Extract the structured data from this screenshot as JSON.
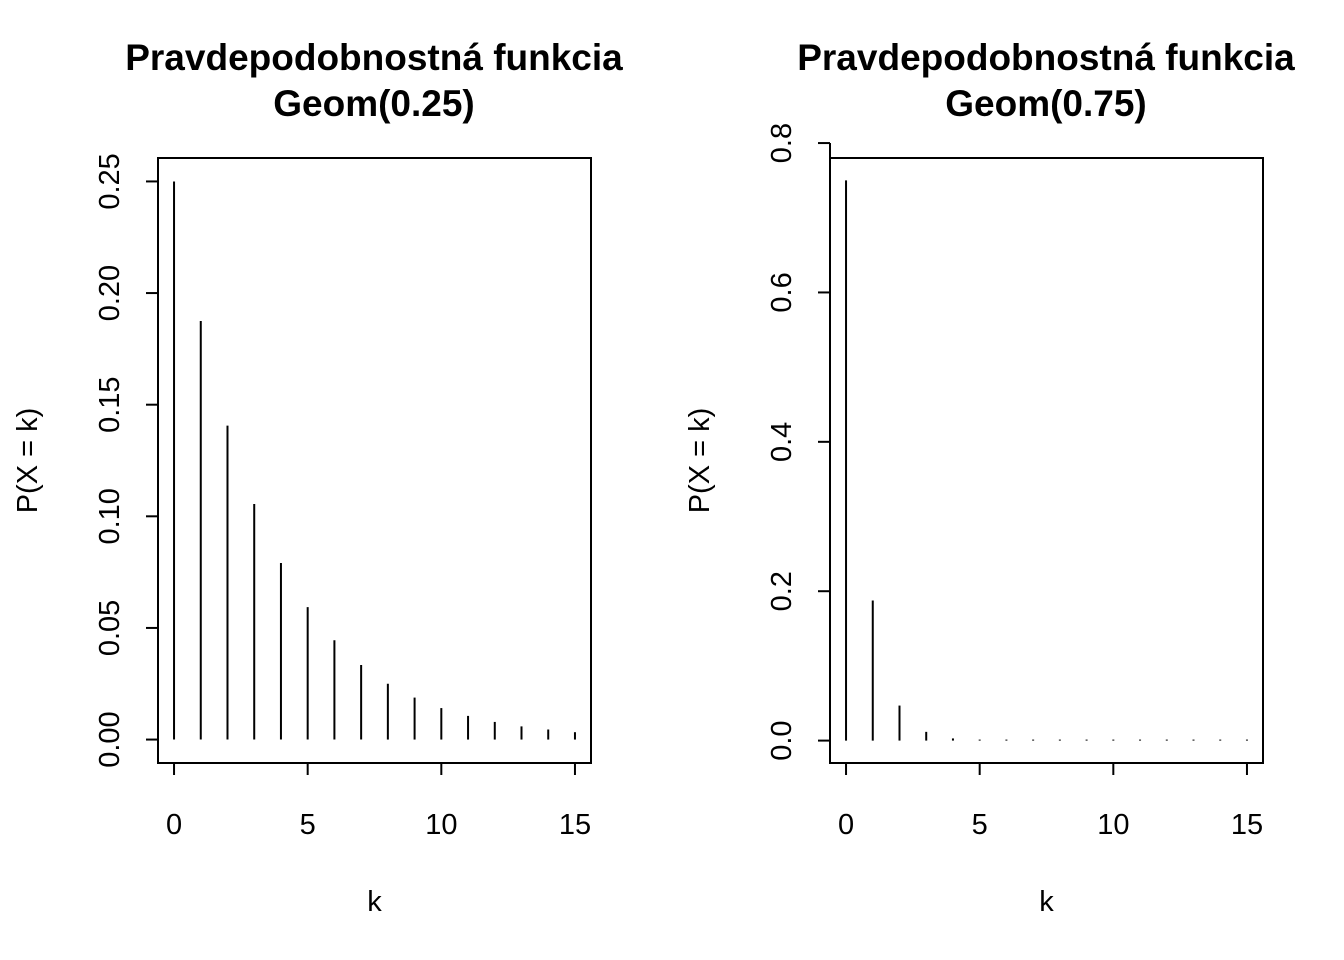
{
  "chart_data": [
    {
      "type": "bar",
      "title": "Pravdepodobnostná funkcia\nGeom(0.25)",
      "xlabel": "k",
      "ylabel": "P(X = k)",
      "xlim": [
        -0.6,
        15.6
      ],
      "ylim": [
        -0.0105,
        0.2605
      ],
      "x_ticks": [
        0,
        5,
        10,
        15
      ],
      "x_tick_labels": [
        "0",
        "5",
        "10",
        "15"
      ],
      "y_ticks": [
        0,
        0.05,
        0.1,
        0.15,
        0.2,
        0.25
      ],
      "y_tick_labels": [
        "0.00",
        "0.05",
        "0.10",
        "0.15",
        "0.20",
        "0.25"
      ],
      "grid": false,
      "x": [
        0,
        1,
        2,
        3,
        4,
        5,
        6,
        7,
        8,
        9,
        10,
        11,
        12,
        13,
        14,
        15
      ],
      "values": [
        0.25,
        0.1875,
        0.1406,
        0.1055,
        0.0791,
        0.0593,
        0.0445,
        0.0334,
        0.025,
        0.0188,
        0.0141,
        0.0106,
        0.0079,
        0.0059,
        0.0045,
        0.0033
      ]
    },
    {
      "type": "bar",
      "title": "Pravdepodobnostná funkcia\nGeom(0.75)",
      "xlabel": "k",
      "ylabel": "P(X = k)",
      "xlim": [
        -0.6,
        15.6
      ],
      "ylim": [
        -0.03,
        0.78
      ],
      "x_ticks": [
        0,
        5,
        10,
        15
      ],
      "x_tick_labels": [
        "0",
        "5",
        "10",
        "15"
      ],
      "y_ticks": [
        0,
        0.2,
        0.4,
        0.6,
        0.8
      ],
      "y_tick_labels": [
        "0.0",
        "0.2",
        "0.4",
        "0.6",
        "0.8"
      ],
      "grid": false,
      "x": [
        0,
        1,
        2,
        3,
        4,
        5,
        6,
        7,
        8,
        9,
        10,
        11,
        12,
        13,
        14,
        15
      ],
      "values": [
        0.75,
        0.1875,
        0.0469,
        0.0117,
        0.0029,
        0.0007,
        0.0002,
        5e-05,
        1e-05,
        0,
        0,
        0,
        0,
        0,
        0,
        0
      ]
    }
  ]
}
